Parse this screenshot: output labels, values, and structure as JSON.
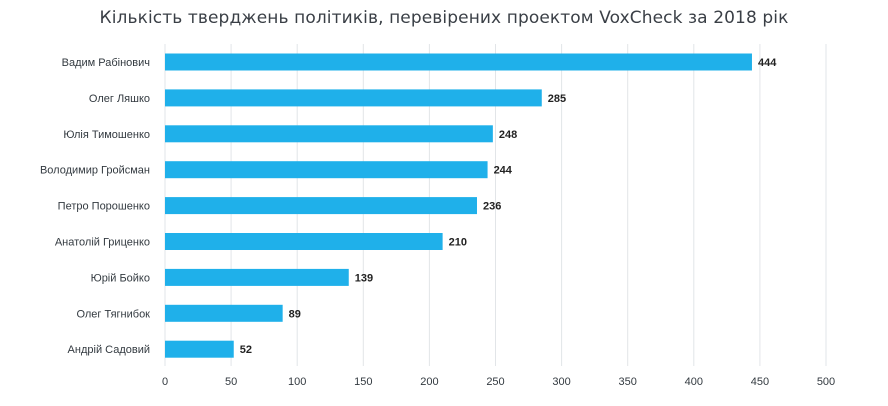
{
  "chart_data": {
    "type": "bar",
    "orientation": "horizontal",
    "title": "Кількість тверджень політиків, перевірених проектом VoxCheck за 2018 рік",
    "categories": [
      "Вадим Рабінович",
      "Олег Ляшко",
      "Юлія Тимошенко",
      "Володимир Гройсман",
      "Петро Порошенко",
      "Анатолій Гриценко",
      "Юрій Бойко",
      "Олег Тягнибок",
      "Андрій Садовий"
    ],
    "values": [
      444,
      285,
      248,
      244,
      236,
      210,
      139,
      89,
      52
    ],
    "value_labels": [
      "444",
      "285",
      "248",
      "244",
      "236",
      "210",
      "139",
      "89",
      "52"
    ],
    "xlim": [
      0,
      500
    ],
    "x_ticks": [
      0,
      50,
      100,
      150,
      200,
      250,
      300,
      350,
      400,
      450,
      500
    ],
    "x_tick_labels": [
      "0",
      "50",
      "100",
      "150",
      "200",
      "250",
      "300",
      "350",
      "400",
      "450",
      "500"
    ],
    "xlabel": "",
    "ylabel": "",
    "grid": true,
    "legend": "none",
    "bar_color": "#1fb0ea",
    "grid_color": "#e2e5e8"
  }
}
